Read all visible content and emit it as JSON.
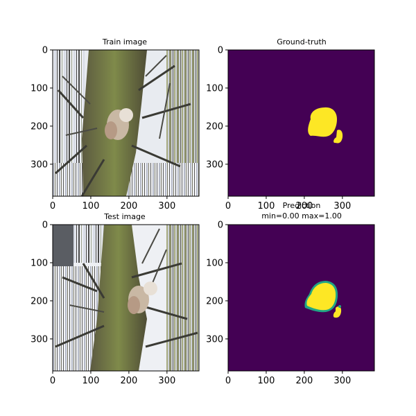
{
  "chart_data": [
    {
      "type": "image",
      "title": "Train image",
      "content": "photograph of a tree trunk with branches; two owl chicks perched in a fork (image is padded with streaked edge columns)",
      "xlim": [
        0,
        384
      ],
      "ylim": [
        384,
        0
      ],
      "xticks": [
        "0",
        "100",
        "200",
        "300"
      ],
      "yticks": [
        "0",
        "100",
        "200",
        "300"
      ]
    },
    {
      "type": "heatmap",
      "title": "Ground-truth",
      "colormap": "viridis",
      "background_color": "#440154",
      "foreground_color": "#fde725",
      "xlim": [
        0,
        384
      ],
      "ylim": [
        384,
        0
      ],
      "xticks": [
        "0",
        "100",
        "200",
        "300"
      ],
      "yticks": [
        "0",
        "100",
        "200",
        "300"
      ]
    },
    {
      "type": "image",
      "title": "Test image",
      "content": "photograph of the same tree with two owl chicks, image padded with streaked edge columns",
      "xlim": [
        0,
        384
      ],
      "ylim": [
        384,
        0
      ],
      "xticks": [
        "0",
        "100",
        "200",
        "300"
      ],
      "yticks": [
        "0",
        "100",
        "200",
        "300"
      ]
    },
    {
      "type": "heatmap",
      "title": "Prediction\nmin=0.00 max=1.00",
      "title_line1": "Prediction",
      "title_line2": "min=0.00 max=1.00",
      "colormap": "viridis",
      "background_color": "#440154",
      "foreground_color": "#fde725",
      "edge_color": "#21a585",
      "min": 0.0,
      "max": 1.0,
      "xlim": [
        0,
        384
      ],
      "ylim": [
        384,
        0
      ],
      "xticks": [
        "0",
        "100",
        "200",
        "300"
      ],
      "yticks": [
        "0",
        "100",
        "200",
        "300"
      ]
    }
  ]
}
